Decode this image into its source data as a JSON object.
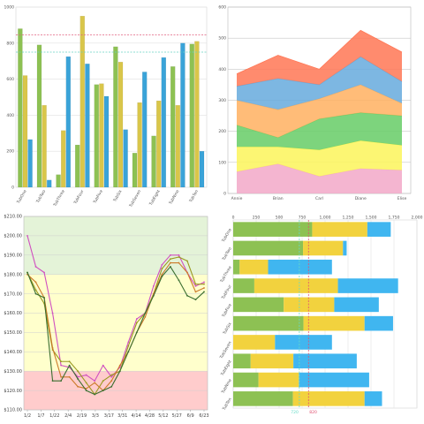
{
  "chart_data": [
    {
      "type": "bar",
      "title": "",
      "categories": [
        "TubOne",
        "TubTwo",
        "TubThree",
        "TubFour",
        "TubFive",
        "TubSix",
        "TubSeven",
        "TubEight",
        "TubNine",
        "TubTen"
      ],
      "y_ticks": [
        "0",
        "200",
        "400",
        "600",
        "800",
        "1000"
      ],
      "ylim": [
        0,
        1000
      ],
      "grid": true,
      "series": [
        {
          "values": [
            880,
            790,
            70,
            235,
            570,
            780,
            190,
            285,
            670,
            795
          ],
          "color": "#8dc153"
        },
        {
          "values": [
            620,
            455,
            315,
            950,
            575,
            695,
            470,
            480,
            455,
            810
          ],
          "color": "#d9c64a"
        },
        {
          "values": [
            265,
            40,
            725,
            685,
            505,
            320,
            640,
            720,
            800,
            200
          ],
          "color": "#3aa3d8"
        }
      ],
      "reference_lines": [
        {
          "value": 845,
          "color": "#e06080"
        },
        {
          "value": 750,
          "color": "#66d4c4"
        }
      ]
    },
    {
      "type": "area",
      "title": "",
      "categories": [
        "Annie",
        "Brian",
        "Carl",
        "Diane",
        "Elise"
      ],
      "y_ticks": [
        "0",
        "100",
        "200",
        "300",
        "400",
        "500",
        "600"
      ],
      "ylim": [
        0,
        600
      ],
      "stacked": true,
      "grid": true,
      "series": [
        {
          "values": [
            70,
            95,
            55,
            80,
            75
          ],
          "color": "#f2a8c8"
        },
        {
          "values": [
            80,
            55,
            85,
            90,
            80
          ],
          "color": "#fcf45a"
        },
        {
          "values": [
            70,
            30,
            100,
            90,
            95
          ],
          "color": "#66cc66"
        },
        {
          "values": [
            80,
            90,
            65,
            90,
            40
          ],
          "color": "#ffb060"
        },
        {
          "values": [
            45,
            100,
            45,
            90,
            70
          ],
          "color": "#66aadd"
        },
        {
          "values": [
            40,
            75,
            50,
            85,
            95
          ],
          "color": "#ff7755"
        }
      ]
    },
    {
      "type": "line",
      "title": "",
      "x_ticks": [
        "1/2",
        "1/7",
        "1/22",
        "2/4",
        "2/19",
        "3/3",
        "3/17",
        "3/31",
        "4/14",
        "4/28",
        "5/12",
        "5/27",
        "6/9",
        "6/23"
      ],
      "y_ticks": [
        "$110.00",
        "$120.00",
        "$130.00",
        "$140.00",
        "$150.00",
        "$160.00",
        "$170.00",
        "$180.00",
        "$190.00",
        "$200.00",
        "$210.00"
      ],
      "ylim": [
        110,
        210
      ],
      "grid": true,
      "bands": [
        {
          "from": 110,
          "to": 130,
          "color": "#ffcccc"
        },
        {
          "from": 130,
          "to": 180,
          "color": "#ffffcc"
        },
        {
          "from": 180,
          "to": 210,
          "color": "#e4f3d8"
        }
      ],
      "series": [
        {
          "color": "#d050c0",
          "values": [
            200,
            184,
            181,
            160,
            133,
            132,
            127,
            128,
            125,
            133,
            127,
            132,
            145,
            157,
            160,
            174,
            185,
            190,
            190,
            181,
            174,
            176
          ]
        },
        {
          "color": "#9a9a20",
          "values": [
            181,
            172,
            165,
            141,
            135,
            135,
            130,
            124,
            118,
            125,
            128,
            130,
            143,
            155,
            160,
            170,
            183,
            188,
            189,
            187,
            175,
            175
          ]
        },
        {
          "color": "#cc7a2a",
          "values": [
            180,
            176,
            168,
            142,
            127,
            127,
            122,
            121,
            124,
            120,
            125,
            133,
            140,
            150,
            158,
            170,
            180,
            186,
            186,
            181,
            171,
            173
          ]
        },
        {
          "color": "#3a6e30",
          "values": [
            181,
            170,
            168,
            125,
            125,
            133,
            126,
            120,
            118,
            120,
            122,
            130,
            140,
            150,
            160,
            169,
            179,
            184,
            177,
            169,
            167,
            171
          ]
        }
      ]
    },
    {
      "type": "bar",
      "orientation": "horizontal",
      "stacked": true,
      "title": "",
      "categories": [
        "TubOne",
        "TubTwo",
        "TubThree",
        "TubFour",
        "TubFive",
        "TubSix",
        "TubSeven",
        "TubEight",
        "TubNine",
        "TubTen"
      ],
      "x_ticks": [
        "0",
        "250",
        "500",
        "750",
        "1,000",
        "1,250",
        "1,500",
        "1,750",
        "2,000"
      ],
      "xlim": [
        0,
        2000
      ],
      "grid": true,
      "series": [
        {
          "values": [
            860,
            760,
            70,
            230,
            550,
            765,
            0,
            190,
            275,
            650
          ],
          "color": "#8dc153"
        },
        {
          "values": [
            600,
            435,
            310,
            910,
            550,
            665,
            455,
            465,
            440,
            780
          ],
          "color": "#f2d23e"
        },
        {
          "values": [
            255,
            40,
            695,
            655,
            485,
            310,
            620,
            690,
            765,
            190
          ],
          "color": "#40b6f0"
        }
      ],
      "reference_lines": [
        {
          "value": 820,
          "color": "#e05070"
        },
        {
          "value": 720,
          "color": "#66dcc8"
        }
      ],
      "annotations": [
        "720",
        "820"
      ]
    }
  ]
}
